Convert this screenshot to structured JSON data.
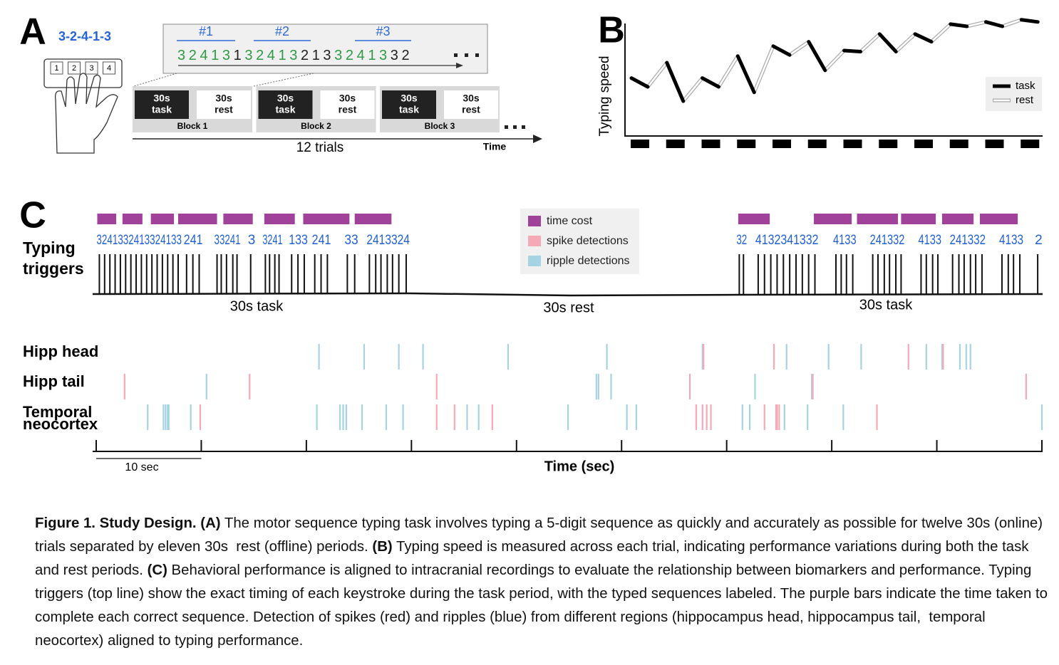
{
  "panel_a": {
    "label": "A",
    "sequence": "3-2-4-1-3",
    "keys": [
      "1",
      "2",
      "3",
      "4"
    ],
    "trial_labels": [
      "#1",
      "#2",
      "#3"
    ],
    "typed": [
      {
        "text": "32413",
        "correct": true
      },
      {
        "text": "1",
        "correct": false
      },
      {
        "text": "32413",
        "correct": true
      },
      {
        "text": "213",
        "correct": false
      },
      {
        "text": "32413",
        "correct": true
      },
      {
        "text": "32",
        "correct": false
      }
    ],
    "blocks": [
      {
        "task": [
          "30s",
          "task"
        ],
        "rest": [
          "30s",
          "rest"
        ],
        "name": "Block 1"
      },
      {
        "task": [
          "30s",
          "task"
        ],
        "rest": [
          "30s",
          "rest"
        ],
        "name": "Block 2"
      },
      {
        "task": [
          "30s",
          "task"
        ],
        "rest": [
          "30s",
          "rest"
        ],
        "name": "Block 3"
      }
    ],
    "trials_label": "12 trials",
    "time_label": "Time"
  },
  "panel_b": {
    "label": "B",
    "ylabel": "Typing speed",
    "ylim": [
      0,
      110
    ],
    "task_start": [
      52,
      66,
      52,
      72,
      81,
      85,
      77,
      92,
      92,
      101,
      103,
      105
    ],
    "task_end": [
      44,
      31,
      44,
      39,
      73,
      59,
      76,
      76,
      85,
      99,
      99,
      103
    ],
    "legend": [
      {
        "name": "task",
        "color": "#000000"
      },
      {
        "name": "rest",
        "color": "#ffffff"
      }
    ]
  },
  "panel_c": {
    "label": "C",
    "triggers_label": [
      "Typing",
      "triggers"
    ],
    "xlim": [
      0,
      90
    ],
    "xticks": [
      0,
      10,
      20,
      30,
      40,
      50,
      60,
      70,
      80,
      90
    ],
    "trigger_times": [
      0.3,
      0.8,
      1.3,
      1.8,
      2.3,
      2.8,
      3.3,
      3.8,
      4.3,
      4.8,
      5.3,
      5.8,
      6.3,
      6.8,
      7.3,
      7.8,
      8.6,
      9.2,
      9.8,
      11.5,
      11.9,
      12.4,
      13.0,
      13.4,
      14.7,
      16.1,
      16.5,
      17.0,
      17.4,
      18.6,
      19.2,
      19.8,
      20.8,
      21.4,
      22.0,
      23.9,
      24.6,
      26.0,
      26.6,
      27.1,
      27.7,
      28.2,
      28.8,
      29.5,
      61.2,
      61.6,
      63.0,
      63.6,
      64.2,
      64.8,
      65.4,
      66.0,
      66.6,
      67.2,
      67.8,
      68.4,
      70.4,
      70.9,
      71.4,
      72.0,
      73.9,
      74.4,
      75.0,
      75.5,
      76.1,
      76.6,
      78.5,
      79.0,
      79.6,
      80.1,
      81.5,
      82.1,
      82.6,
      83.2,
      83.7,
      84.3,
      86.2,
      86.8,
      87.3,
      87.9,
      89.6
    ],
    "sequence_labels": [
      "3241332413324133",
      "241",
      "33241",
      "3",
      "3241",
      "133",
      "241",
      "33",
      "2413324",
      "32",
      "4132341332",
      "4133",
      "241332",
      "4133",
      "241332",
      "4133",
      "2"
    ],
    "time_cost": [
      [
        0.1,
        1.9
      ],
      [
        2.5,
        4.4
      ],
      [
        5.2,
        7.4
      ],
      [
        7.8,
        11.5
      ],
      [
        12.1,
        14.9
      ],
      [
        16.0,
        18.9
      ],
      [
        19.7,
        24.1
      ],
      [
        24.6,
        28.1
      ],
      [
        61.1,
        64.1
      ],
      [
        68.3,
        71.9
      ],
      [
        72.4,
        76.3
      ],
      [
        76.6,
        79.9
      ],
      [
        80.5,
        83.5
      ],
      [
        84.1,
        87.7
      ]
    ],
    "legend": [
      {
        "name": "time cost",
        "color": "#a0419a"
      },
      {
        "name": "spike detections",
        "color": "#f5a9b6"
      },
      {
        "name": "ripple detections",
        "color": "#a6d3e2"
      }
    ],
    "periods": [
      "30s task",
      "30s rest",
      "30s task"
    ],
    "regions": [
      {
        "name": [
          "Hipp head"
        ],
        "spikes": [
          57.8,
          64.5,
          77.3,
          80.6
        ],
        "ripples": [
          21.2,
          25.5,
          28.8,
          31.1,
          39.2,
          48.6,
          57.7,
          65.7,
          69.7,
          72.8,
          79.0,
          80.5,
          82.2,
          82.8,
          83.2
        ]
      },
      {
        "name": [
          "Hipp tail"
        ],
        "spikes": [
          2.7,
          14.6,
          32.4,
          56.5,
          68.2,
          88.5
        ],
        "ripples": [
          10.5,
          47.6,
          47.8,
          49.0,
          62.7,
          68.1
        ]
      },
      {
        "name": [
          "Temporal",
          "neocortex"
        ],
        "spikes": [
          9.9,
          32.4,
          34.1,
          37.7,
          57.1,
          57.7,
          58.1,
          58.5,
          63.6,
          64.7,
          64.8,
          65.0,
          74.3
        ],
        "ripples": [
          4.9,
          6.4,
          6.6,
          6.8,
          6.9,
          9.0,
          21.0,
          23.2,
          23.5,
          23.8,
          25.3,
          27.6,
          29.2,
          35.3,
          36.4,
          44.9,
          50.5,
          51.4,
          61.5,
          62.2,
          65.5,
          67.7,
          71.1,
          90.0
        ]
      }
    ],
    "scale_label": "10 sec",
    "xlabel": "Time (sec)"
  },
  "caption": {
    "title": "Figure 1. Study Design.",
    "parts": [
      {
        "label": "(A)",
        "text": "The motor sequence typing task involves typing a 5-digit sequence as quickly and accurately as possible for twelve 30s (online) trials separated by eleven 30s  rest (offline) periods."
      },
      {
        "label": "(B)",
        "text": "Typing speed is measured across each trial, indicating performance variations during both the task and rest periods."
      },
      {
        "label": "(C)",
        "text": "Behavioral performance is aligned to intracranial recordings to evaluate the relationship between biomarkers and performance. Typing triggers (top line) show the exact timing of each keystroke during the task period, with the typed sequences labeled. The purple bars indicate the time taken to complete each correct sequence. Detection of spikes (red) and ripples (blue) from different regions (hippocampus head, hippocampus tail,  temporal neocortex) aligned to typing performance."
      }
    ]
  }
}
